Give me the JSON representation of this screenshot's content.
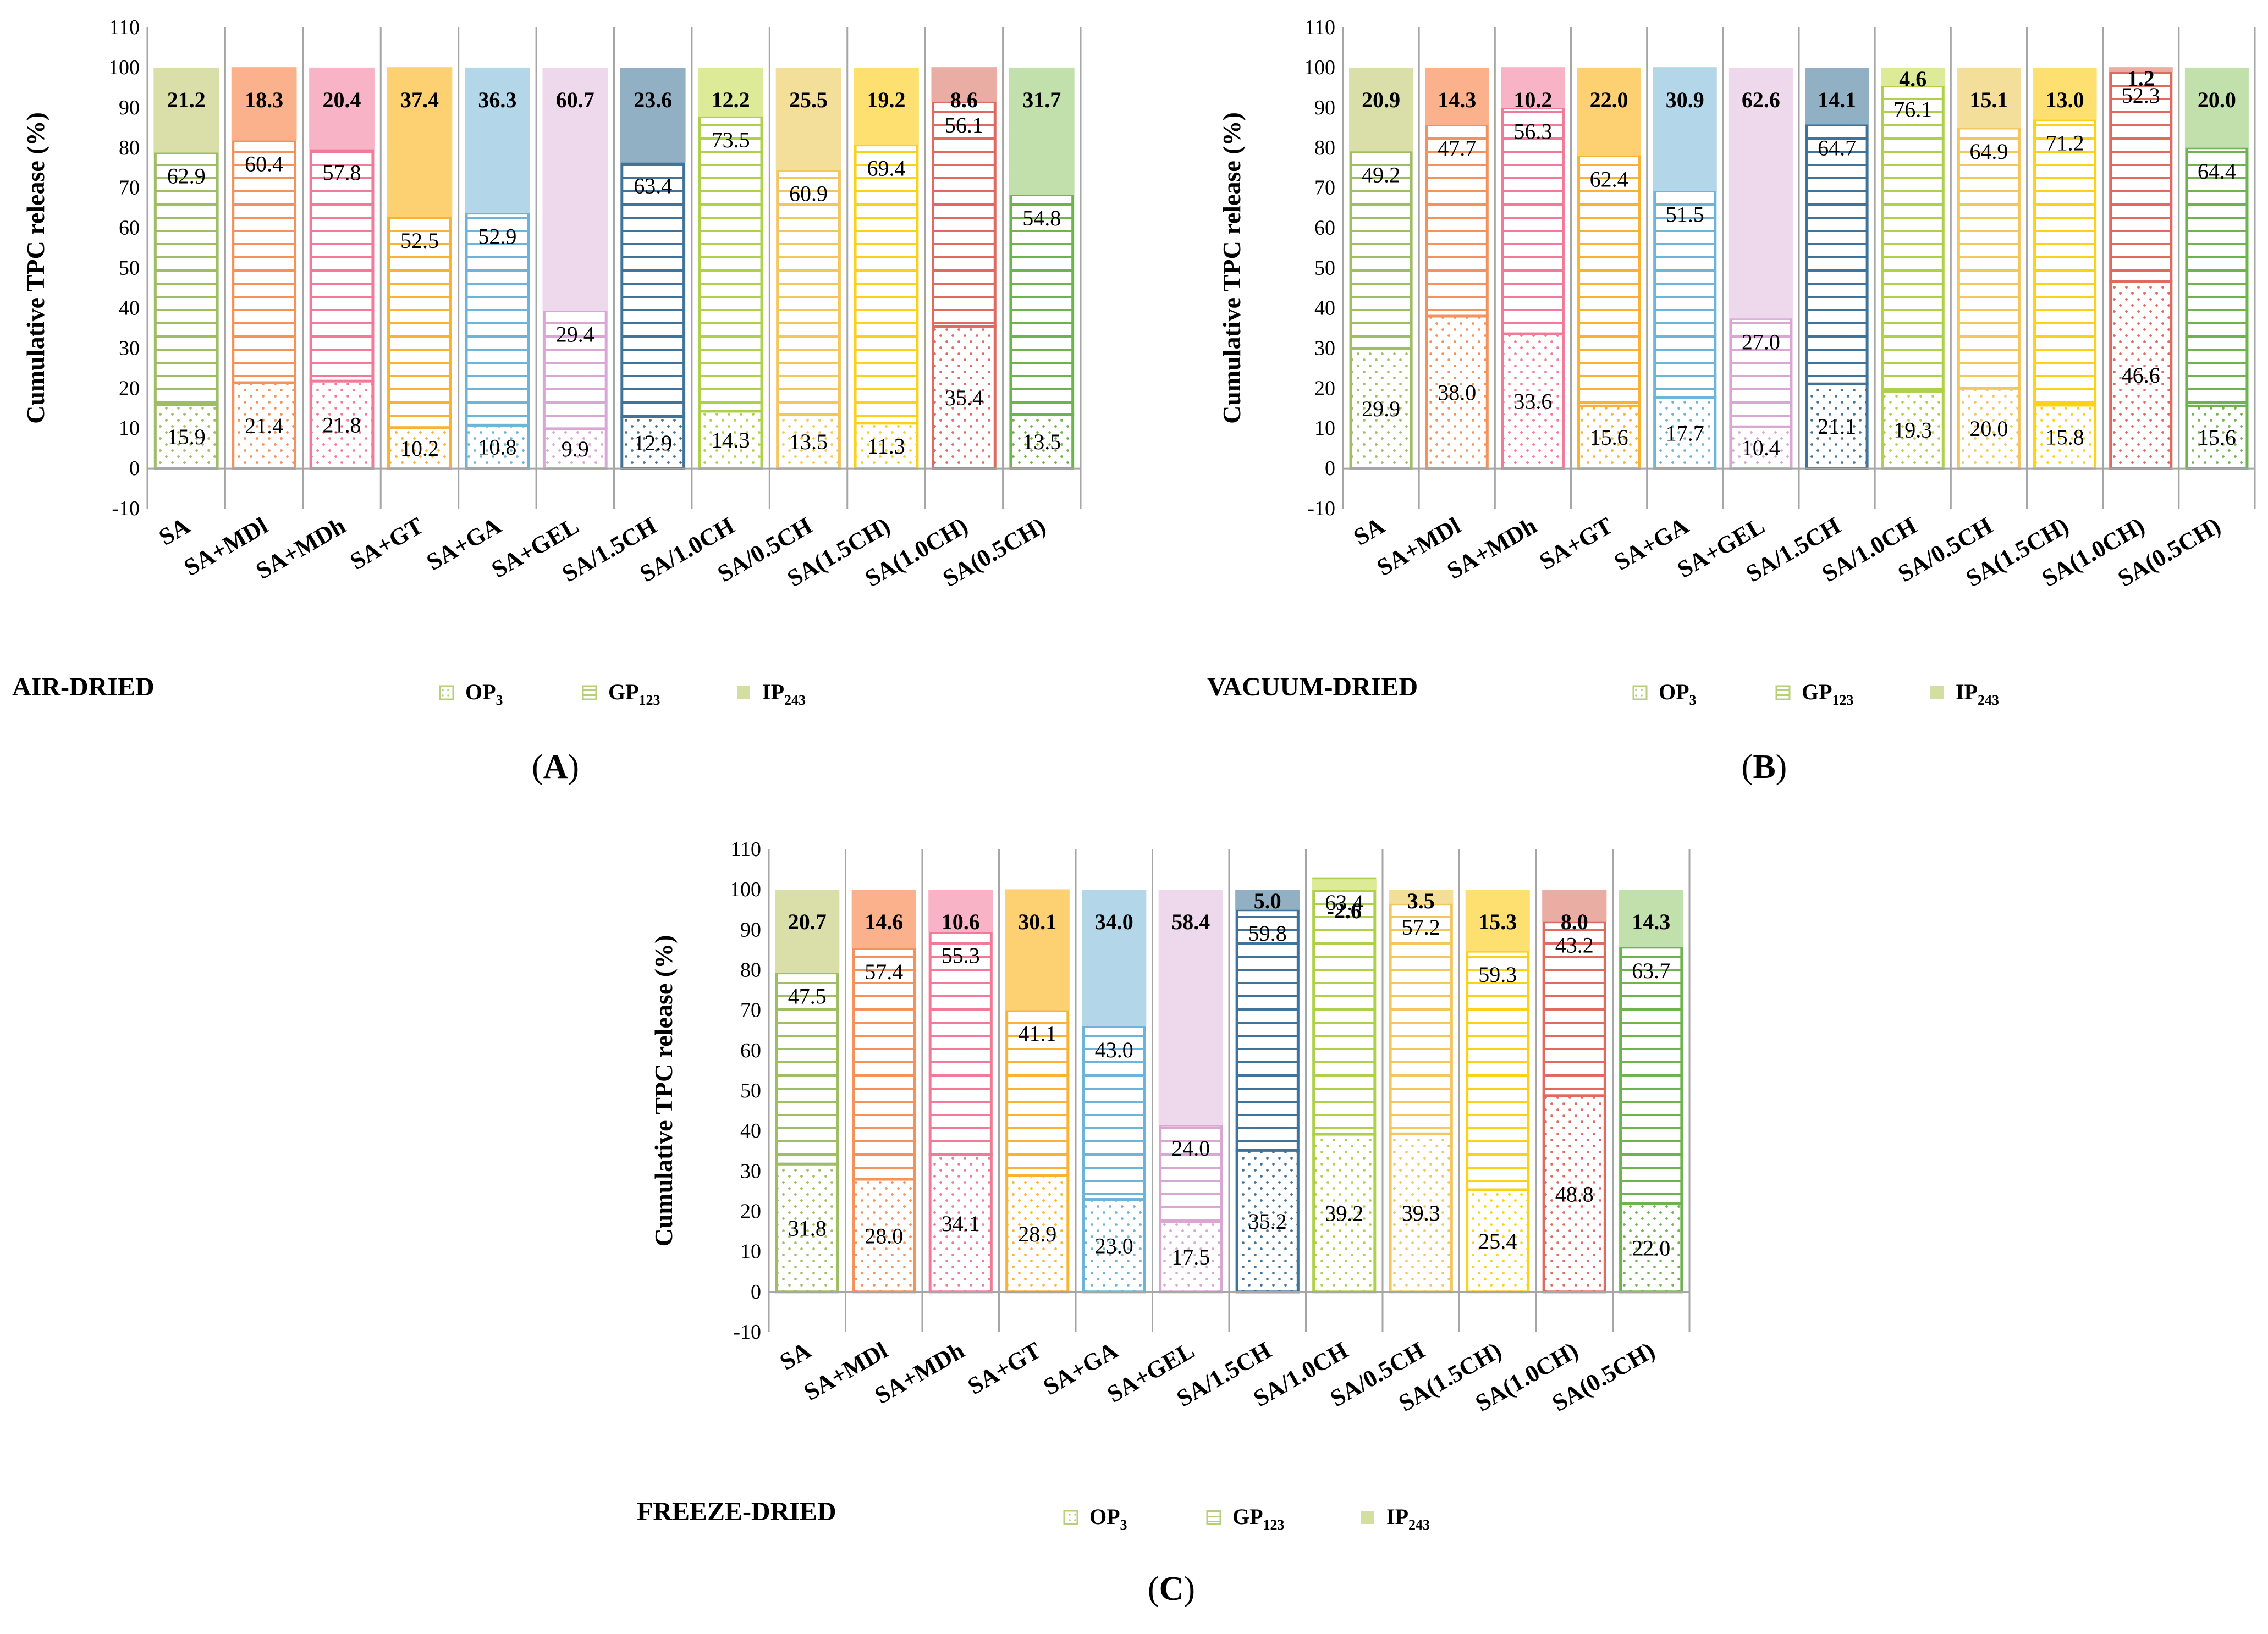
{
  "figure": {
    "ylabel": "Cumulative TPC release (%)",
    "yticks": [
      -10,
      0,
      10,
      20,
      30,
      40,
      50,
      60,
      70,
      80,
      90,
      100,
      110
    ],
    "legend": [
      {
        "key": "OP",
        "text": "OP",
        "sub": "3",
        "pattern": "dots"
      },
      {
        "key": "GP",
        "text": "GP",
        "sub": "123",
        "pattern": "stripes"
      },
      {
        "key": "IP",
        "text": "IP",
        "sub": "243",
        "pattern": "solid"
      }
    ]
  },
  "colors": {
    "SA": "#9fbd63",
    "SA+MDl": "#f5915a",
    "SA+MDh": "#f27a98",
    "SA+GT": "#f9b233",
    "SA+GA": "#6cb4d8",
    "SA+GEL": "#d9a7d3",
    "SA/1.5CH": "#3f7399",
    "SA/1.0CH": "#aed04a",
    "SA/0.5CH": "#f3c760",
    "SA(1.5CH)": "#fcd11a",
    "SA(1.0CH)": "#e06a5f",
    "SA(0.5CH)": "#6fb34f",
    "IP_SA": "#dadfaa",
    "IP_SA+MDl": "#fbb18c",
    "IP_SA+MDh": "#f8b3c7",
    "IP_SA+GT": "#fdd172",
    "IP_SA+GA": "#b3d7e9",
    "IP_SA+GEL": "#eed8ec",
    "IP_SA/1.5CH": "#92b0c4",
    "IP_SA/1.0CH": "#ddea97",
    "IP_SA/0.5CH": "#f4df9a",
    "IP_SA(1.5CH)": "#fde070",
    "IP_SA(1.0CH)": "#e9ada3",
    "IP_SA(0.5CH)": "#c2e0ab",
    "axis": "#a6a6a6",
    "text": "#000000"
  },
  "chart_data": [
    {
      "type": "bar",
      "panel": "A",
      "panel_label": "(A)",
      "subtitle": "AIR-DRIED",
      "ylabel": "Cumulative TPC release (%)",
      "ylim": [
        -10,
        110
      ],
      "categories": [
        "SA",
        "SA+MDl",
        "SA+MDh",
        "SA+GT",
        "SA+GA",
        "SA+GEL",
        "SA/1.5CH",
        "SA/1.0CH",
        "SA/0.5CH",
        "SA(1.5CH)",
        "SA(1.0CH)",
        "SA(0.5CH)"
      ],
      "series": [
        {
          "name": "OP3",
          "values": [
            15.9,
            21.4,
            21.8,
            10.2,
            10.8,
            9.9,
            12.9,
            14.3,
            13.5,
            11.3,
            35.4,
            13.5
          ]
        },
        {
          "name": "GP123",
          "values": [
            62.9,
            60.4,
            57.8,
            52.5,
            52.9,
            29.4,
            63.4,
            73.5,
            60.9,
            69.4,
            56.1,
            54.8
          ]
        },
        {
          "name": "IP243",
          "values": [
            21.2,
            18.3,
            20.4,
            37.4,
            36.3,
            60.7,
            23.6,
            12.2,
            25.5,
            19.2,
            8.6,
            31.7
          ]
        }
      ]
    },
    {
      "type": "bar",
      "panel": "B",
      "panel_label": "(B)",
      "subtitle": "VACUUM-DRIED",
      "ylabel": "Cumulative TPC release (%)",
      "ylim": [
        -10,
        110
      ],
      "categories": [
        "SA",
        "SA+MDl",
        "SA+MDh",
        "SA+GT",
        "SA+GA",
        "SA+GEL",
        "SA/1.5CH",
        "SA/1.0CH",
        "SA/0.5CH",
        "SA(1.5CH)",
        "SA(1.0CH)",
        "SA(0.5CH)"
      ],
      "series": [
        {
          "name": "OP3",
          "values": [
            29.9,
            38.0,
            33.6,
            15.6,
            17.7,
            10.4,
            21.1,
            19.3,
            20.0,
            15.8,
            46.6,
            15.6
          ]
        },
        {
          "name": "GP123",
          "values": [
            49.2,
            47.7,
            56.3,
            62.4,
            51.5,
            27.0,
            64.7,
            76.1,
            64.9,
            71.2,
            52.3,
            64.4
          ]
        },
        {
          "name": "IP243",
          "values": [
            20.9,
            14.3,
            10.2,
            22.0,
            30.9,
            62.6,
            14.1,
            4.6,
            15.1,
            13.0,
            1.2,
            20.0
          ]
        }
      ]
    },
    {
      "type": "bar",
      "panel": "C",
      "panel_label": "(C)",
      "subtitle": "FREEZE-DRIED",
      "ylabel": "Cumulative TPC release (%)",
      "ylim": [
        -10,
        110
      ],
      "categories": [
        "SA",
        "SA+MDl",
        "SA+MDh",
        "SA+GT",
        "SA+GA",
        "SA+GEL",
        "SA/1.5CH",
        "SA/1.0CH",
        "SA/0.5CH",
        "SA(1.5CH)",
        "SA(1.0CH)",
        "SA(0.5CH)"
      ],
      "series": [
        {
          "name": "OP3",
          "values": [
            31.8,
            28.0,
            34.1,
            28.9,
            23.0,
            17.5,
            35.2,
            39.2,
            39.3,
            25.4,
            48.8,
            22.0
          ]
        },
        {
          "name": "GP123",
          "values": [
            47.5,
            57.4,
            55.3,
            41.1,
            43.0,
            24.0,
            59.8,
            63.4,
            57.2,
            59.3,
            43.2,
            63.7
          ]
        },
        {
          "name": "IP243",
          "values": [
            20.7,
            14.6,
            10.6,
            30.1,
            34.0,
            58.4,
            5.0,
            -2.6,
            3.5,
            15.3,
            8.0,
            14.3
          ]
        }
      ]
    }
  ]
}
